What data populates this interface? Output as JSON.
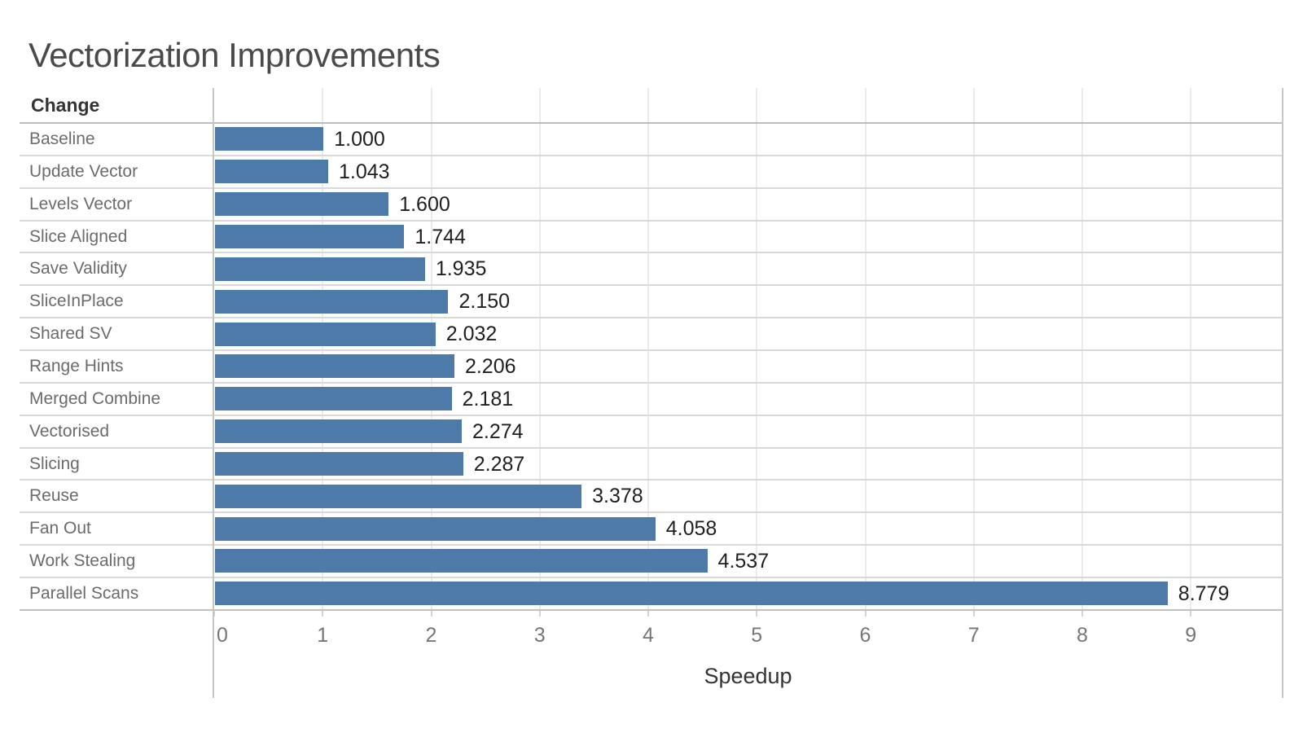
{
  "chart_data": {
    "type": "bar",
    "orientation": "horizontal",
    "title": "Vectorization Improvements",
    "column_header": "Change",
    "xlabel": "Speedup",
    "categories": [
      "Baseline",
      "Update Vector",
      "Levels Vector",
      "Slice Aligned",
      "Save Validity",
      "SliceInPlace",
      "Shared SV",
      "Range Hints",
      "Merged Combine",
      "Vectorised",
      "Slicing",
      "Reuse",
      "Fan Out",
      "Work Stealing",
      "Parallel Scans"
    ],
    "values": [
      1.0,
      1.043,
      1.6,
      1.744,
      1.935,
      2.15,
      2.032,
      2.206,
      2.181,
      2.274,
      2.287,
      3.378,
      4.058,
      4.537,
      8.779
    ],
    "value_labels": [
      "1.000",
      "1.043",
      "1.600",
      "1.744",
      "1.935",
      "2.150",
      "2.032",
      "2.206",
      "2.181",
      "2.274",
      "2.287",
      "3.378",
      "4.058",
      "4.537",
      "8.779"
    ],
    "x_ticks": [
      "0",
      "1",
      "2",
      "3",
      "4",
      "5",
      "6",
      "7",
      "8",
      "9"
    ],
    "xlim": [
      0,
      9.84
    ],
    "grid": "vertical-integer-gridlines",
    "legend": "none",
    "bar_color": "#4d7aa8"
  }
}
